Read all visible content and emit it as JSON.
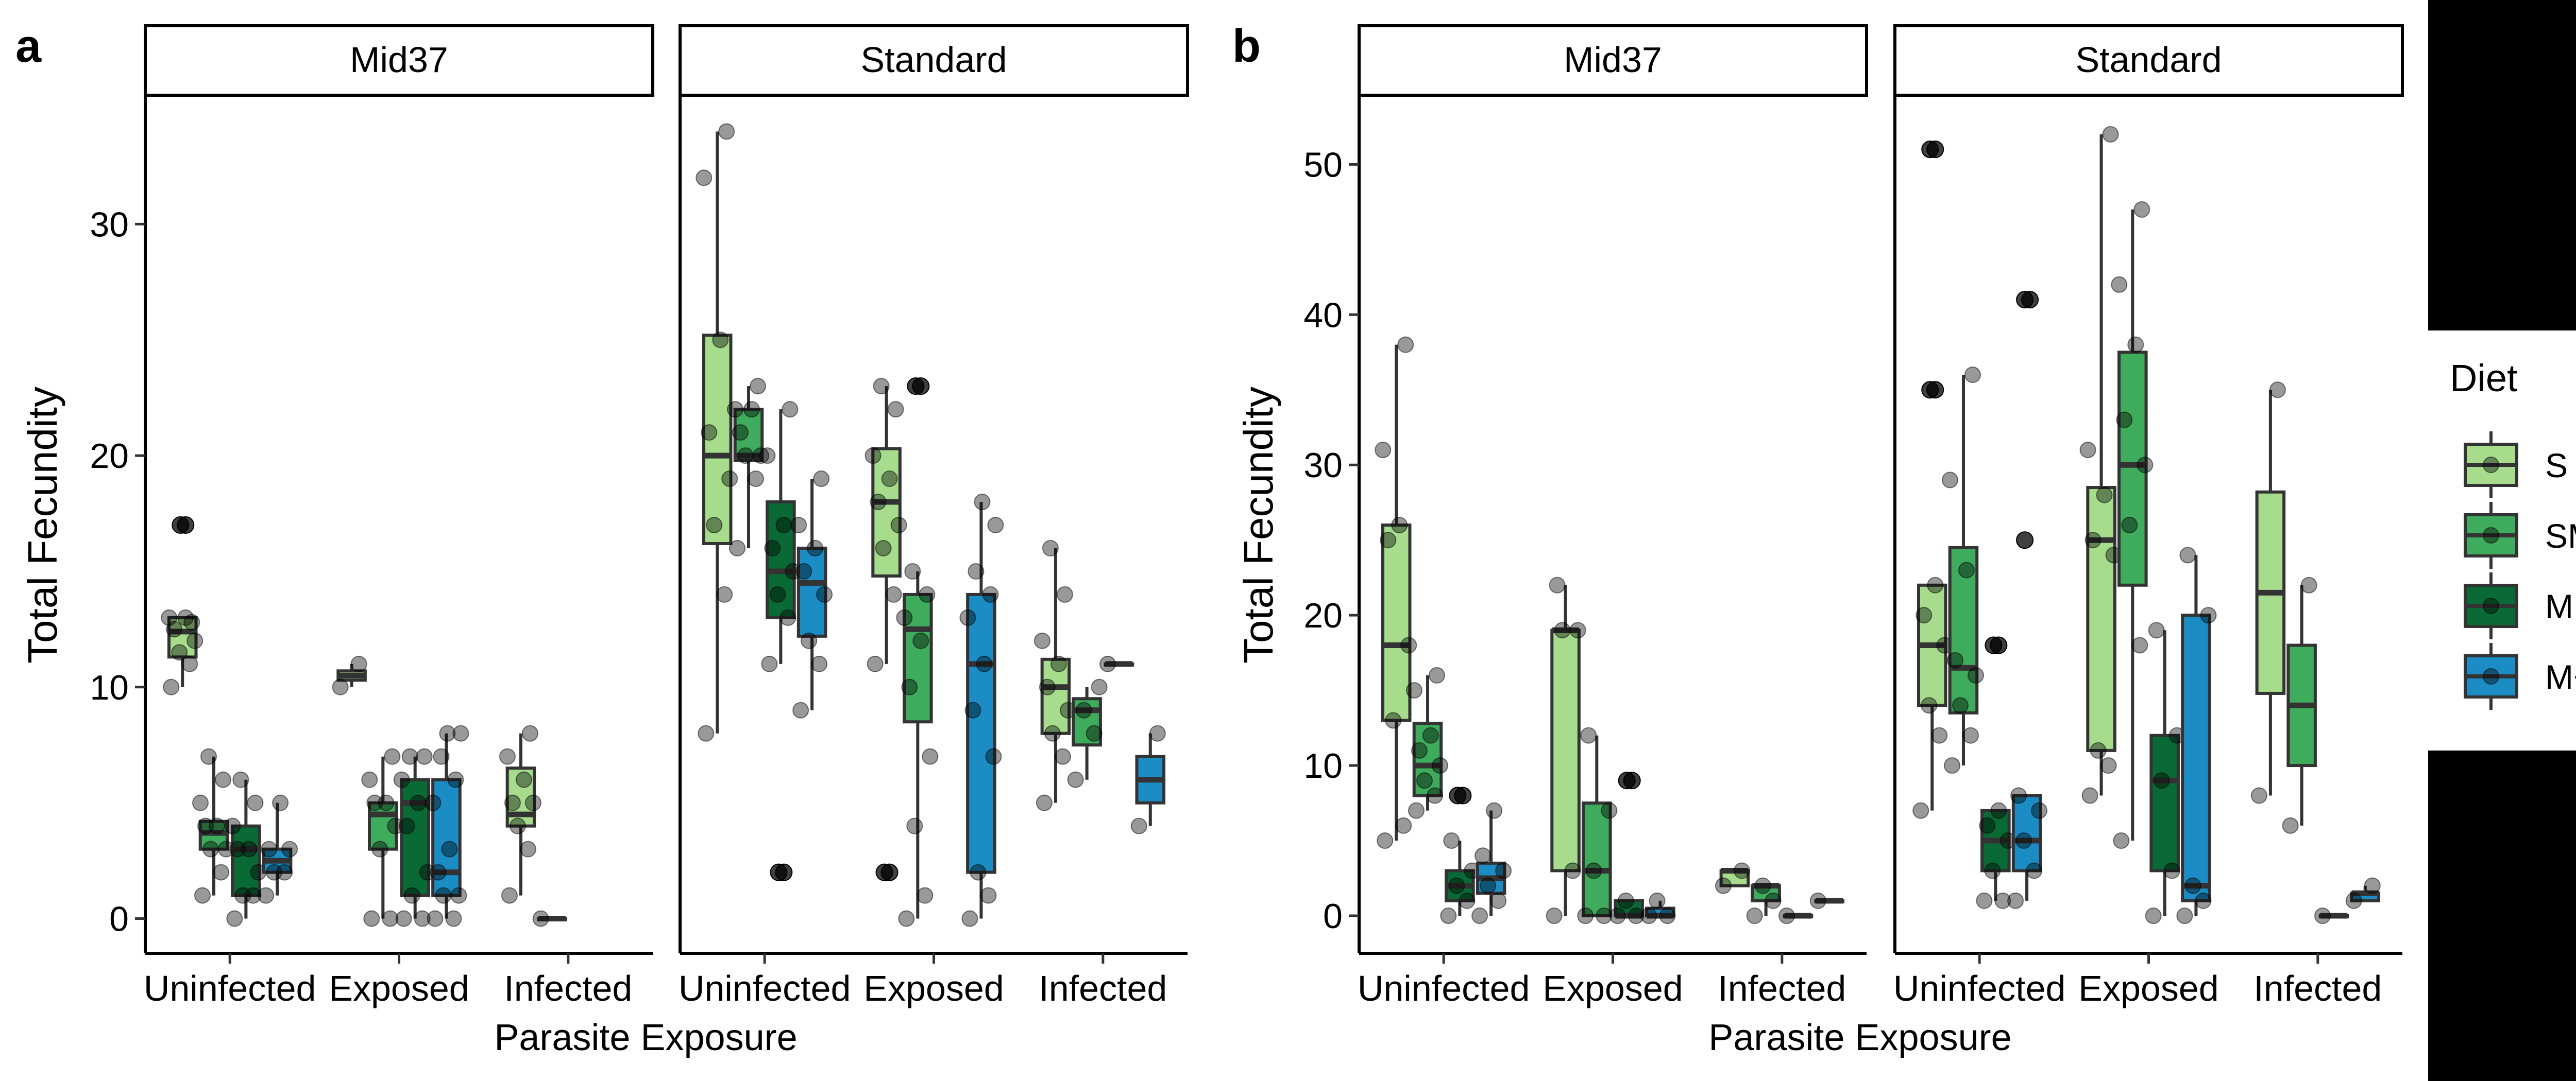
{
  "figure": {
    "diet_legend": {
      "title": "Diet",
      "entries": [
        {
          "label": "S",
          "color": "#a6dc8c"
        },
        {
          "label": "SM",
          "color": "#3fab5c"
        },
        {
          "label": "M",
          "color": "#0a6a35"
        },
        {
          "label": "M+",
          "color": "#1b8cc4"
        }
      ]
    }
  },
  "chart_data": [
    {
      "type": "box",
      "panel_label": "a",
      "ylabel": "Total Fecundity",
      "xlabel": "Parasite Exposure",
      "ylim": [
        -1.5,
        35.5
      ],
      "yticks": [
        0,
        10,
        20,
        30
      ],
      "grid": false,
      "facets": [
        {
          "strip": "Mid37",
          "categories": [
            "Uninfected",
            "Exposed",
            "Infected"
          ],
          "groups": [
            {
              "category": "Uninfected",
              "diet": "S",
              "min": 10,
              "q1": 11.3,
              "median": 12.4,
              "q3": 13,
              "max": 13,
              "points": [
                10,
                11,
                11.5,
                12,
                12.5,
                13,
                13,
                12.8
              ],
              "outliers": [
                17,
                17
              ]
            },
            {
              "category": "Uninfected",
              "diet": "SM",
              "min": 1,
              "q1": 3,
              "median": 3.7,
              "q3": 4.2,
              "max": 7,
              "points": [
                1,
                2,
                3,
                3,
                4,
                4,
                5,
                6,
                7
              ]
            },
            {
              "category": "Uninfected",
              "diet": "M",
              "min": 0,
              "q1": 1,
              "median": 3,
              "q3": 4,
              "max": 6,
              "points": [
                0,
                1,
                1,
                2,
                3,
                3,
                4,
                5,
                6
              ]
            },
            {
              "category": "Uninfected",
              "diet": "M+",
              "min": 1,
              "q1": 2,
              "median": 2.5,
              "q3": 3,
              "max": 5,
              "points": [
                1,
                2,
                2,
                3,
                3,
                5
              ]
            },
            {
              "category": "Exposed",
              "diet": "S",
              "min": 10,
              "q1": 10.3,
              "median": 10.5,
              "q3": 10.7,
              "max": 11,
              "points": [
                10,
                11
              ]
            },
            {
              "category": "Exposed",
              "diet": "SM",
              "min": 0,
              "q1": 3,
              "median": 4.5,
              "q3": 5,
              "max": 7,
              "points": [
                0,
                0,
                3,
                4,
                5,
                5,
                6,
                7
              ]
            },
            {
              "category": "Exposed",
              "diet": "M",
              "min": 0,
              "q1": 1,
              "median": 5,
              "q3": 6,
              "max": 7,
              "points": [
                0,
                0,
                1,
                2,
                4,
                5,
                6,
                7,
                7
              ]
            },
            {
              "category": "Exposed",
              "diet": "M+",
              "min": 0,
              "q1": 1,
              "median": 2,
              "q3": 6,
              "max": 8,
              "points": [
                0,
                0,
                1,
                1,
                2,
                3,
                5,
                6,
                7,
                8,
                8
              ]
            },
            {
              "category": "Infected",
              "diet": "S",
              "min": 1,
              "q1": 4,
              "median": 4.5,
              "q3": 6.5,
              "max": 8,
              "points": [
                1,
                3,
                4,
                5,
                5,
                6,
                7,
                8
              ]
            },
            {
              "category": "Infected",
              "diet": "SM",
              "min": 0,
              "q1": 0,
              "median": 0,
              "q3": 0,
              "max": 0,
              "points": [
                0
              ]
            }
          ]
        },
        {
          "strip": "Standard",
          "categories": [
            "Uninfected",
            "Exposed",
            "Infected"
          ],
          "groups": [
            {
              "category": "Uninfected",
              "diet": "S",
              "min": 8,
              "q1": 16.2,
              "median": 20,
              "q3": 25.2,
              "max": 34,
              "points": [
                8,
                14,
                17,
                19,
                21,
                25,
                32,
                34
              ]
            },
            {
              "category": "Uninfected",
              "diet": "SM",
              "min": 16,
              "q1": 19.8,
              "median": 20,
              "q3": 22,
              "max": 23,
              "points": [
                16,
                19,
                20,
                20,
                21,
                22,
                22,
                23
              ]
            },
            {
              "category": "Uninfected",
              "diet": "M",
              "min": 11,
              "q1": 13,
              "median": 15,
              "q3": 18,
              "max": 22,
              "points": [
                11,
                13,
                14,
                15,
                16,
                17,
                20,
                22
              ],
              "outliers": [
                2,
                2
              ]
            },
            {
              "category": "Uninfected",
              "diet": "M+",
              "min": 9,
              "q1": 12.2,
              "median": 14.5,
              "q3": 16,
              "max": 19,
              "points": [
                9,
                11,
                12,
                14,
                15,
                16,
                17,
                19
              ]
            },
            {
              "category": "Exposed",
              "diet": "S",
              "min": 11,
              "q1": 14.8,
              "median": 18,
              "q3": 20.3,
              "max": 23,
              "points": [
                11,
                14,
                16,
                17,
                18,
                19,
                20,
                22,
                23
              ],
              "outliers": [
                2,
                2
              ]
            },
            {
              "category": "Exposed",
              "diet": "SM",
              "min": 0,
              "q1": 8.5,
              "median": 12.5,
              "q3": 14,
              "max": 15,
              "points": [
                0,
                1,
                4,
                7,
                10,
                12,
                13,
                14,
                15
              ],
              "outliers": [
                23,
                23
              ]
            },
            {
              "category": "Exposed",
              "diet": "M+",
              "min": 0,
              "q1": 2,
              "median": 11,
              "q3": 14,
              "max": 18,
              "points": [
                0,
                1,
                2,
                7,
                9,
                11,
                13,
                14,
                15,
                17,
                18
              ]
            },
            {
              "category": "Infected",
              "diet": "S",
              "min": 5,
              "q1": 8,
              "median": 10,
              "q3": 11.2,
              "max": 16,
              "points": [
                5,
                7,
                8,
                9,
                10,
                11,
                12,
                14,
                16
              ]
            },
            {
              "category": "Infected",
              "diet": "SM",
              "min": 6,
              "q1": 7.5,
              "median": 9,
              "q3": 9.5,
              "max": 10,
              "points": [
                6,
                8,
                9,
                10
              ]
            },
            {
              "category": "Infected",
              "diet": "M",
              "min": 11,
              "q1": 11,
              "median": 11,
              "q3": 11,
              "max": 11,
              "points": [
                11
              ]
            },
            {
              "category": "Infected",
              "diet": "M+",
              "min": 4,
              "q1": 5,
              "median": 6,
              "q3": 7,
              "max": 8,
              "points": [
                4,
                8
              ]
            }
          ]
        }
      ]
    },
    {
      "type": "box",
      "panel_label": "b",
      "ylabel": "Total Fecundity",
      "xlabel": "Parasite Exposure",
      "ylim": [
        -2.5,
        54.5
      ],
      "yticks": [
        0,
        10,
        20,
        30,
        40,
        50
      ],
      "grid": false,
      "facets": [
        {
          "strip": "Mid37",
          "categories": [
            "Uninfected",
            "Exposed",
            "Infected"
          ],
          "groups": [
            {
              "category": "Uninfected",
              "diet": "S",
              "min": 5,
              "q1": 13,
              "median": 18,
              "q3": 26,
              "max": 38,
              "points": [
                5,
                6,
                13,
                18,
                25,
                26,
                31,
                38
              ]
            },
            {
              "category": "Uninfected",
              "diet": "SM",
              "min": 7,
              "q1": 8,
              "median": 10,
              "q3": 12.8,
              "max": 16,
              "points": [
                7,
                8,
                9,
                10,
                11,
                12,
                15,
                16
              ]
            },
            {
              "category": "Uninfected",
              "diet": "M",
              "min": 0,
              "q1": 1,
              "median": 2,
              "q3": 3,
              "max": 5,
              "points": [
                0,
                1,
                2,
                3,
                5
              ],
              "outliers": [
                8,
                8
              ]
            },
            {
              "category": "Uninfected",
              "diet": "M+",
              "min": 0,
              "q1": 1.5,
              "median": 2.5,
              "q3": 3.5,
              "max": 7,
              "points": [
                0,
                1,
                2,
                3,
                4,
                7
              ]
            },
            {
              "category": "Exposed",
              "diet": "S",
              "min": 0,
              "q1": 3,
              "median": 19,
              "q3": 19,
              "max": 22,
              "points": [
                0,
                3,
                19,
                19,
                22
              ]
            },
            {
              "category": "Exposed",
              "diet": "SM",
              "min": 0,
              "q1": 0,
              "median": 3,
              "q3": 7.5,
              "max": 12,
              "points": [
                0,
                0,
                3,
                7,
                12
              ]
            },
            {
              "category": "Exposed",
              "diet": "M",
              "min": 0,
              "q1": 0,
              "median": 0,
              "q3": 1,
              "max": 1,
              "points": [
                0,
                0,
                1
              ],
              "outliers": [
                9,
                9
              ]
            },
            {
              "category": "Exposed",
              "diet": "M+",
              "min": 0,
              "q1": 0,
              "median": 0,
              "q3": 0.5,
              "max": 1,
              "points": [
                0,
                0,
                1
              ]
            },
            {
              "category": "Infected",
              "diet": "S",
              "min": 2,
              "q1": 2,
              "median": 3,
              "q3": 3,
              "max": 3,
              "points": [
                2,
                3
              ]
            },
            {
              "category": "Infected",
              "diet": "SM",
              "min": 0,
              "q1": 1,
              "median": 2,
              "q3": 2,
              "max": 2,
              "points": [
                0,
                1,
                2
              ]
            },
            {
              "category": "Infected",
              "diet": "M",
              "min": 0,
              "q1": 0,
              "median": 0,
              "q3": 0,
              "max": 0,
              "points": [
                0
              ]
            },
            {
              "category": "Infected",
              "diet": "M+",
              "min": 1,
              "q1": 1,
              "median": 1,
              "q3": 1,
              "max": 1,
              "points": [
                1
              ]
            }
          ]
        },
        {
          "strip": "Standard",
          "categories": [
            "Uninfected",
            "Exposed",
            "Infected"
          ],
          "groups": [
            {
              "category": "Uninfected",
              "diet": "S",
              "min": 7,
              "q1": 14,
              "median": 18,
              "q3": 22,
              "max": 22,
              "points": [
                7,
                12,
                14,
                18,
                20,
                22
              ],
              "outliers": [
                35,
                35,
                51,
                51
              ]
            },
            {
              "category": "Uninfected",
              "diet": "SM",
              "min": 10,
              "q1": 13.5,
              "median": 16.5,
              "q3": 24.5,
              "max": 36,
              "points": [
                10,
                12,
                14,
                16,
                17,
                23,
                29,
                36
              ]
            },
            {
              "category": "Uninfected",
              "diet": "M",
              "min": 1,
              "q1": 3,
              "median": 5,
              "q3": 7,
              "max": 7,
              "points": [
                1,
                1,
                3,
                5,
                6,
                7
              ],
              "outliers": [
                18,
                18
              ]
            },
            {
              "category": "Uninfected",
              "diet": "M+",
              "min": 1,
              "q1": 3,
              "median": 5,
              "q3": 8,
              "max": 8,
              "points": [
                1,
                3,
                5,
                7,
                8
              ],
              "outliers": [
                25,
                41,
                41
              ]
            },
            {
              "category": "Exposed",
              "diet": "S",
              "min": 8,
              "q1": 11,
              "median": 25,
              "q3": 28.5,
              "max": 52,
              "points": [
                8,
                10,
                11,
                24,
                25,
                28,
                31,
                52
              ]
            },
            {
              "category": "Exposed",
              "diet": "SM",
              "min": 5,
              "q1": 22,
              "median": 30,
              "q3": 37.5,
              "max": 47,
              "points": [
                5,
                18,
                26,
                30,
                33,
                38,
                42,
                47
              ]
            },
            {
              "category": "Exposed",
              "diet": "M",
              "min": 0,
              "q1": 3,
              "median": 9,
              "q3": 12,
              "max": 19,
              "points": [
                0,
                3,
                9,
                12,
                19
              ]
            },
            {
              "category": "Exposed",
              "diet": "M+",
              "min": 0,
              "q1": 1,
              "median": 2,
              "q3": 20,
              "max": 24,
              "points": [
                0,
                1,
                2,
                20,
                24
              ]
            },
            {
              "category": "Infected",
              "diet": "S",
              "min": 8,
              "q1": 14.8,
              "median": 21.5,
              "q3": 28.2,
              "max": 35,
              "points": [
                8,
                35
              ]
            },
            {
              "category": "Infected",
              "diet": "SM",
              "min": 6,
              "q1": 10,
              "median": 14,
              "q3": 18,
              "max": 22,
              "points": [
                6,
                22
              ]
            },
            {
              "category": "Infected",
              "diet": "M",
              "min": 0,
              "q1": 0,
              "median": 0,
              "q3": 0,
              "max": 0,
              "points": [
                0
              ]
            },
            {
              "category": "Infected",
              "diet": "M+",
              "min": 1,
              "q1": 1,
              "median": 1.5,
              "q3": 1.5,
              "max": 2,
              "points": [
                1,
                2
              ]
            }
          ]
        }
      ]
    }
  ]
}
